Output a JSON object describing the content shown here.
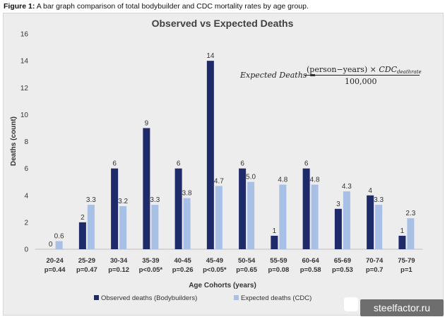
{
  "caption": {
    "label": "Figure 1:",
    "text": "A bar graph comparison of total bodybuilder and CDC mortality rates by age group."
  },
  "formula": {
    "lhs": "Expected Deaths =",
    "numerator": "(person−years) ×",
    "cdc": "CDC",
    "subscript": "deathrate",
    "denominator": "100,000"
  },
  "watermark": "steelfactor.ru",
  "colors": {
    "observed": "#1f2a6b",
    "expected": "#a8bfe6",
    "grid": "#d8d8d8",
    "panel": "#ededed"
  },
  "chart_data": {
    "type": "bar",
    "title": "Observed vs Expected Deaths",
    "xlabel": "Age Cohorts (years)",
    "ylabel": "Deaths (count)",
    "ylim": [
      0,
      16
    ],
    "yticks": [
      0,
      2,
      4,
      6,
      8,
      10,
      12,
      14,
      16
    ],
    "grid": false,
    "legend_position": "bottom",
    "categories": [
      "20-24",
      "25-29",
      "30-34",
      "35-39",
      "40-45",
      "45-49",
      "50-54",
      "55-59",
      "60-64",
      "65-69",
      "70-74",
      "75-79"
    ],
    "p_values": [
      "p=0.44",
      "p=0.47",
      "p=0.12",
      "p<0.05*",
      "p=0.26",
      "p<0.05*",
      "p=0.65",
      "p=0.08",
      "p=0.58",
      "p=0.53",
      "p=0.7",
      "p=1"
    ],
    "series": [
      {
        "name": "Observed deaths (Bodybuilders)",
        "values": [
          0,
          2,
          6,
          9,
          6,
          14,
          6,
          1,
          6,
          3,
          4,
          1
        ],
        "labels": [
          "0",
          "2",
          "6",
          "9",
          "6",
          "14",
          "6",
          "1",
          "6",
          "3",
          "4",
          "1"
        ]
      },
      {
        "name": "Expected deaths (CDC)",
        "values": [
          0.6,
          3.3,
          3.2,
          3.3,
          3.8,
          4.7,
          5.0,
          4.8,
          4.8,
          4.3,
          3.3,
          2.3
        ],
        "labels": [
          "0.6",
          "3.3",
          "3.2",
          "3.3",
          "3.8",
          "4.7",
          "5.0",
          "4.8",
          "4.8",
          "4.3",
          "3.3",
          "2.3"
        ]
      }
    ]
  }
}
